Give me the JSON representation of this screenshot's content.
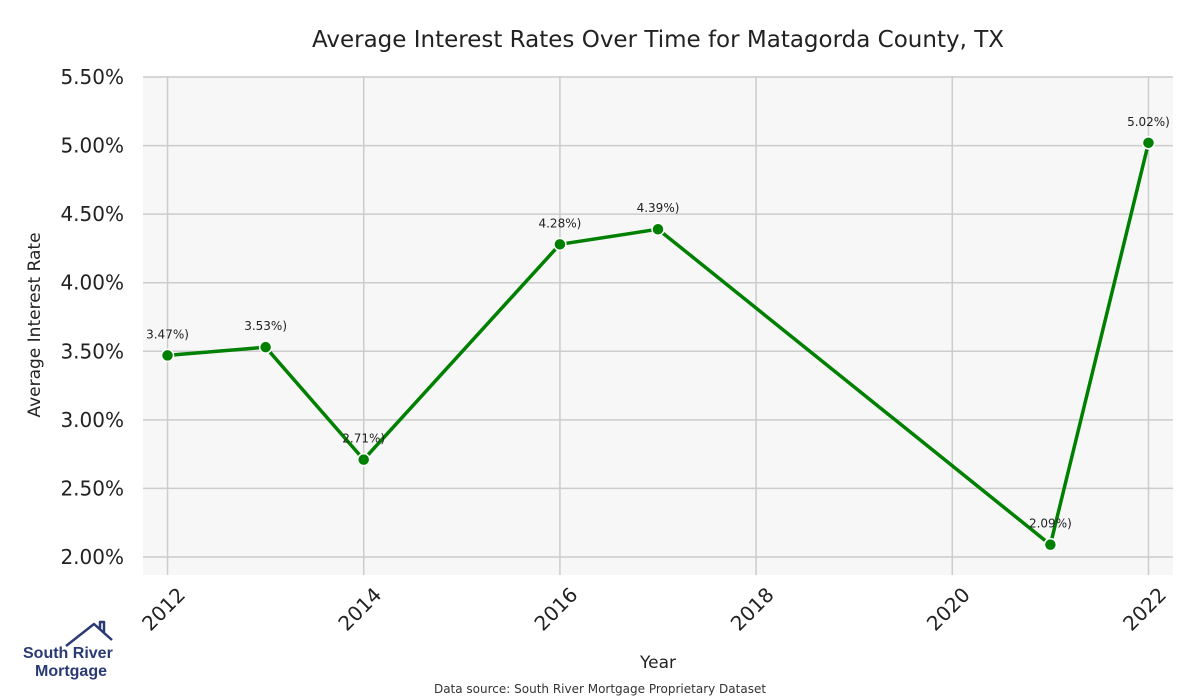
{
  "chart_data": {
    "type": "line",
    "title": "Average Interest Rates Over Time for Matagorda County, TX",
    "xlabel": "Year",
    "ylabel": "Average Interest Rate",
    "xlim": [
      2011.75,
      2022.25
    ],
    "ylim": [
      1.88,
      5.5
    ],
    "xticks": [
      2012,
      2014,
      2016,
      2018,
      2020,
      2022
    ],
    "yticks": [
      2.0,
      2.5,
      3.0,
      3.5,
      4.0,
      4.5,
      5.0,
      5.5
    ],
    "ytick_labels": [
      "2.00%",
      "2.50%",
      "3.00%",
      "3.50%",
      "4.00%",
      "4.50%",
      "5.00%",
      "5.50%"
    ],
    "grid": true,
    "series": [
      {
        "x": [
          2012,
          2013,
          2014,
          2016,
          2017,
          2021,
          2022
        ],
        "y": [
          3.47,
          3.53,
          2.71,
          4.28,
          4.39,
          2.09,
          5.02
        ],
        "labels": [
          "3.47%)",
          "3.53%)",
          "2.71%)",
          "4.28%)",
          "4.39%)",
          "2.09%)",
          "5.02%)"
        ],
        "color": "#008000"
      }
    ]
  },
  "source_note": "Data source: South River Mortgage Proprietary Dataset",
  "logo": {
    "line1": "South River",
    "line2": "Mortgage",
    "color": "#2a3a73"
  },
  "colors": {
    "plot_bg": "#f7f7f7",
    "grid": "#cccccc",
    "line": "#008000"
  }
}
